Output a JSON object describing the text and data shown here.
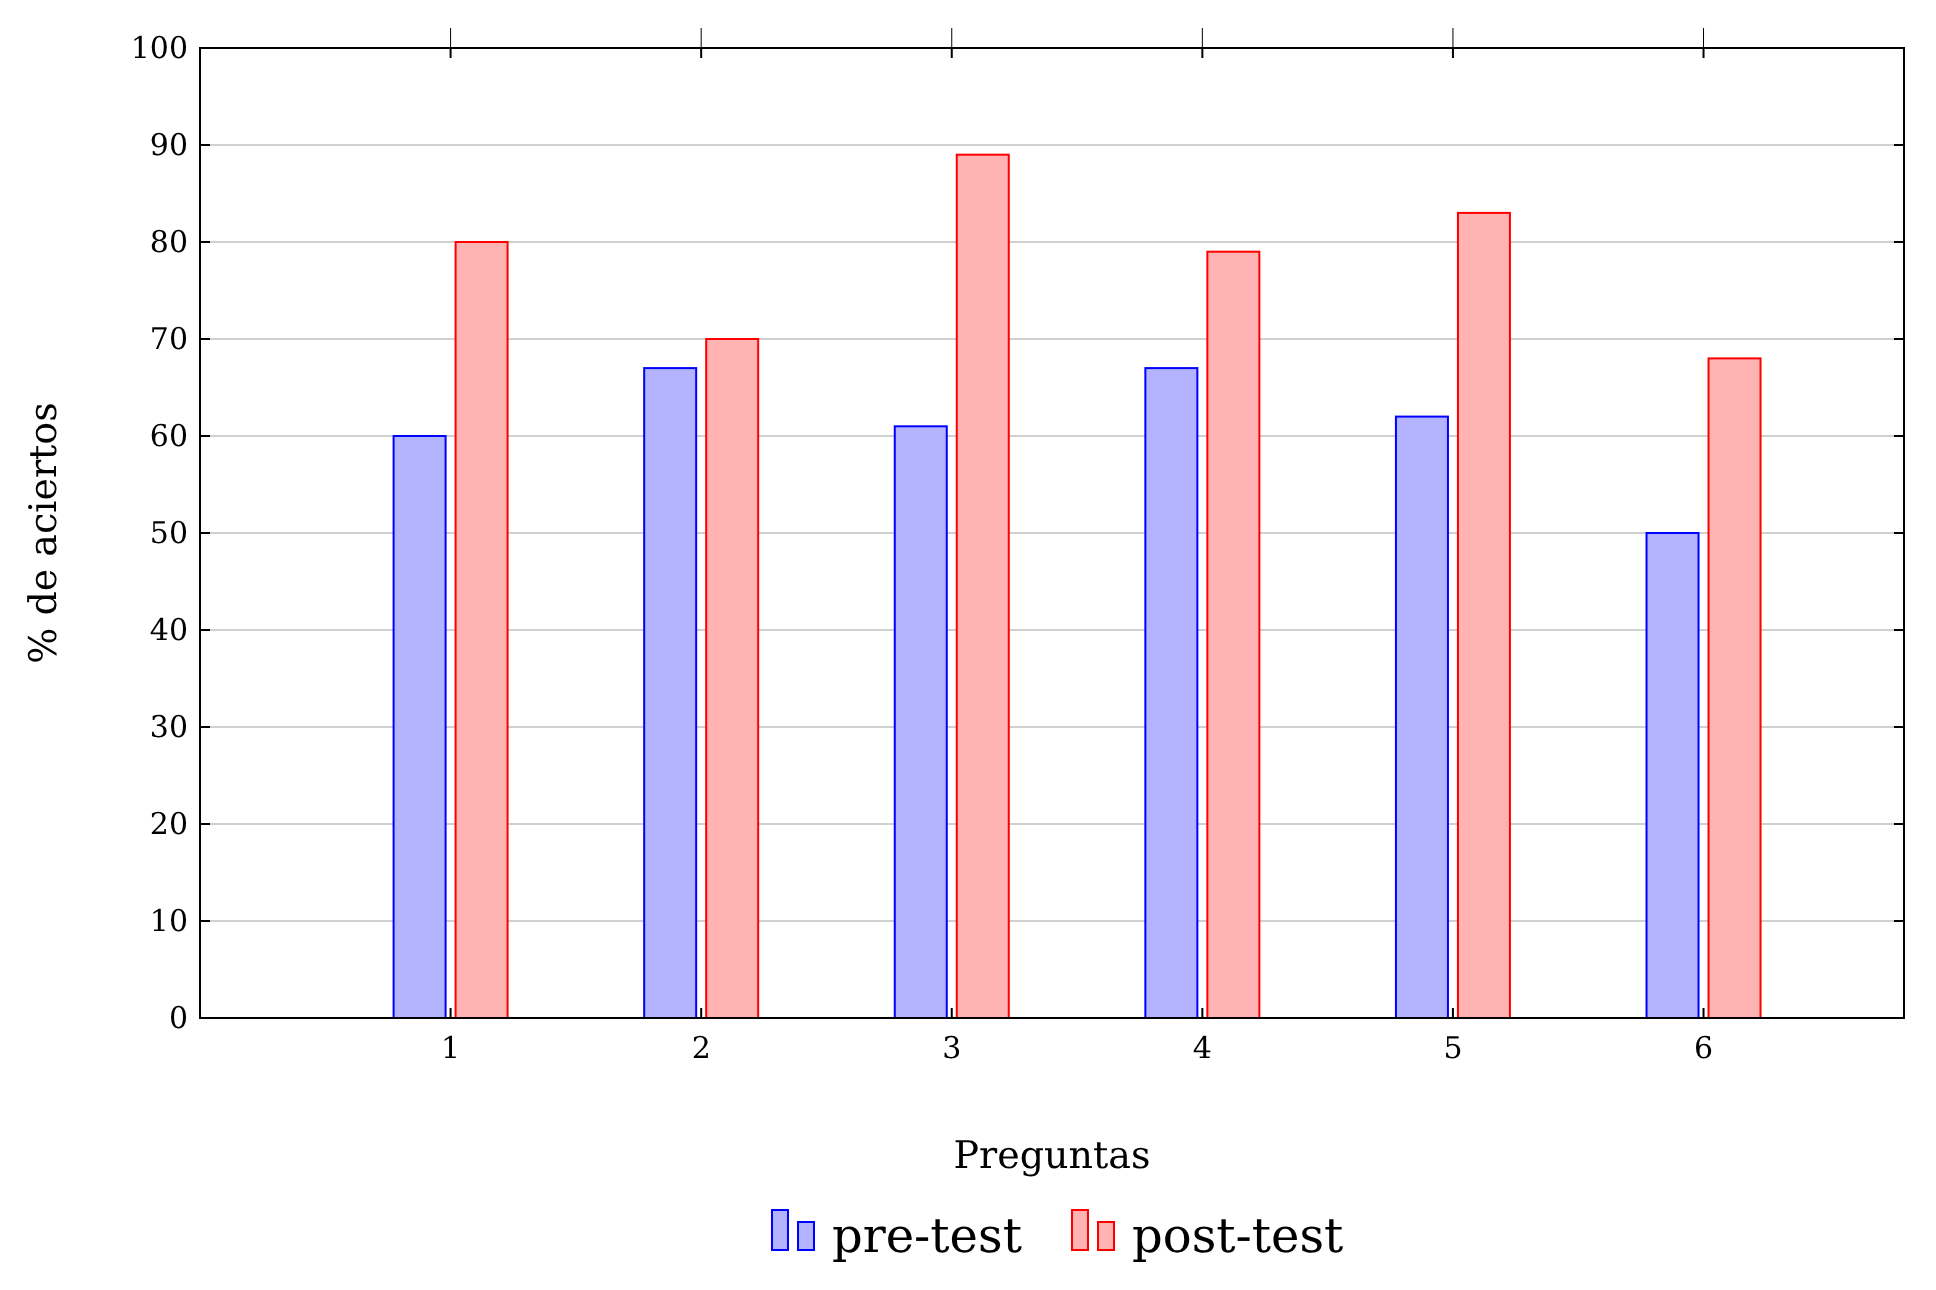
{
  "chart_data": {
    "type": "bar",
    "xlabel": "Preguntas",
    "ylabel": "% de aciertos",
    "x": [
      1,
      2,
      3,
      4,
      5,
      6
    ],
    "xlim": [
      0,
      6.8
    ],
    "xticks": [
      1,
      2,
      3,
      4,
      5,
      6
    ],
    "ylim": [
      0,
      100
    ],
    "yticks": [
      0,
      10,
      20,
      30,
      40,
      50,
      60,
      70,
      80,
      90,
      100
    ],
    "grid": "y",
    "legend": "bottom",
    "series": [
      {
        "name": "pre-test",
        "color": "#b3b3ff",
        "values": [
          60,
          67,
          61,
          67,
          62,
          50
        ]
      },
      {
        "name": "post-test",
        "color": "#ffb3b3",
        "values": [
          80,
          70,
          89,
          79,
          83,
          68
        ]
      }
    ]
  }
}
